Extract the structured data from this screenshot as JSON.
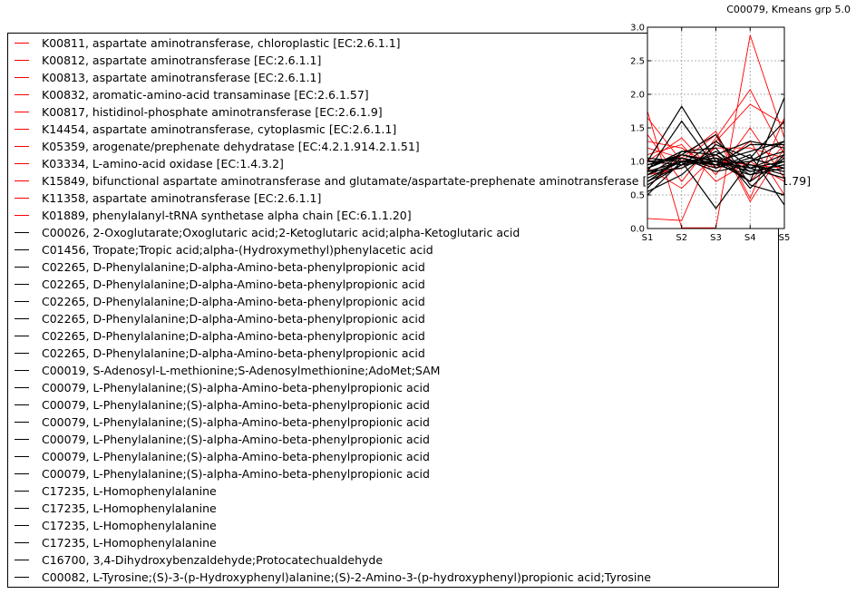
{
  "chart_data": {
    "type": "line",
    "title": "C00079, Kmeans grp 5.0",
    "categories": [
      "S1",
      "S2",
      "S3",
      "S4",
      "S5"
    ],
    "ylim": [
      0.0,
      3.0
    ],
    "yticks": [
      "0.0",
      "0.5",
      "1.0",
      "1.5",
      "2.0",
      "2.5",
      "3.0"
    ],
    "grid": true,
    "legend_placement": "left",
    "colors": {
      "gene": "#ff0000",
      "compound": "#000000"
    },
    "series": [
      {
        "name": "K00811, aspartate aminotransferase, chloroplastic [EC:2.6.1.1]",
        "color": "#ff0000",
        "values": [
          1.75,
          0.01,
          0.01,
          2.88,
          1.35
        ]
      },
      {
        "name": "K00812, aspartate aminotransferase [EC:2.6.1.1]",
        "color": "#ff0000",
        "values": [
          1.65,
          1.0,
          1.4,
          0.4,
          1.2
        ]
      },
      {
        "name": "K00813, aspartate aminotransferase [EC:2.6.1.1]",
        "color": "#ff0000",
        "values": [
          1.4,
          0.7,
          1.35,
          2.07,
          1.1
        ]
      },
      {
        "name": "K00832, aromatic-amino-acid transaminase [EC:2.6.1.57]",
        "color": "#ff0000",
        "values": [
          0.15,
          0.12,
          1.3,
          1.85,
          1.55
        ]
      },
      {
        "name": "K00817, histidinol-phosphate aminotransferase [EC:2.6.1.9]",
        "color": "#ff0000",
        "values": [
          1.2,
          1.05,
          1.45,
          0.45,
          1.65
        ]
      },
      {
        "name": "K14454, aspartate aminotransferase, cytoplasmic [EC:2.6.1.1]",
        "color": "#ff0000",
        "values": [
          1.0,
          1.35,
          0.8,
          1.5,
          0.75
        ]
      },
      {
        "name": "K05359, arogenate/prephenate dehydratase [EC:4.2.1.914.2.1.51]",
        "color": "#ff0000",
        "values": [
          1.3,
          1.2,
          0.9,
          1.3,
          0.5
        ]
      },
      {
        "name": "K03334, L-amino-acid oxidase [EC:1.4.3.2]",
        "color": "#ff0000",
        "values": [
          0.9,
          0.6,
          1.1,
          0.7,
          1.25
        ]
      },
      {
        "name": "K15849, bifunctional aspartate aminotransferase and glutamate/aspartate-prephenate aminotransferase [EC:2.6.1.1 2.6.1.78 2.6.1.79]",
        "color": "#ff0000",
        "values": [
          0.6,
          1.1,
          1.0,
          0.95,
          0.9
        ]
      },
      {
        "name": "K11358, aspartate aminotransferase [EC:2.6.1.1]",
        "color": "#ff0000",
        "values": [
          0.8,
          0.9,
          1.2,
          1.2,
          1.05
        ]
      },
      {
        "name": "K01889, phenylalanyl-tRNA synthetase alpha chain [EC:6.1.1.20]",
        "color": "#ff0000",
        "values": [
          1.1,
          1.25,
          0.7,
          1.0,
          0.7
        ]
      },
      {
        "name": "C00026, 2-Oxoglutarate;Oxoglutaric acid;2-Ketoglutaric acid;alpha-Ketoglutaric acid",
        "color": "#000000",
        "values": [
          1.0,
          1.82,
          1.0,
          0.7,
          1.95
        ]
      },
      {
        "name": "C01456, Tropate;Tropic acid;alpha-(Hydroxymethyl)phenylacetic acid",
        "color": "#000000",
        "values": [
          0.5,
          1.0,
          0.3,
          1.0,
          1.3
        ]
      },
      {
        "name": "C02265, D-Phenylalanine;D-alpha-Amino-beta-phenylpropionic acid",
        "color": "#000000",
        "values": [
          0.85,
          1.6,
          0.9,
          1.1,
          0.35
        ]
      },
      {
        "name": "C02265, D-Phenylalanine;D-alpha-Amino-beta-phenylpropionic acid",
        "color": "#000000",
        "values": [
          0.9,
          1.1,
          1.0,
          0.9,
          1.0
        ]
      },
      {
        "name": "C02265, D-Phenylalanine;D-alpha-Amino-beta-phenylpropionic acid",
        "color": "#000000",
        "values": [
          0.7,
          0.95,
          1.1,
          0.8,
          0.9
        ]
      },
      {
        "name": "C02265, D-Phenylalanine;D-alpha-Amino-beta-phenylpropionic acid",
        "color": "#000000",
        "values": [
          0.6,
          1.15,
          1.2,
          0.6,
          1.1
        ]
      },
      {
        "name": "C02265, D-Phenylalanine;D-alpha-Amino-beta-phenylpropionic acid",
        "color": "#000000",
        "values": [
          1.05,
          1.0,
          0.95,
          1.25,
          1.25
        ]
      },
      {
        "name": "C02265, D-Phenylalanine;D-alpha-Amino-beta-phenylpropionic acid",
        "color": "#000000",
        "values": [
          0.95,
          1.05,
          0.85,
          0.95,
          0.8
        ]
      },
      {
        "name": "C00019, S-Adenosyl-L-methionine;S-Adenosylmethionine;AdoMet;SAM",
        "color": "#000000",
        "values": [
          0.8,
          1.1,
          1.4,
          0.65,
          0.5
        ]
      },
      {
        "name": "C00079, L-Phenylalanine;(S)-alpha-Amino-beta-phenylpropionic acid",
        "color": "#000000",
        "values": [
          0.9,
          1.15,
          1.1,
          1.3,
          1.2
        ]
      },
      {
        "name": "C00079, L-Phenylalanine;(S)-alpha-Amino-beta-phenylpropionic acid",
        "color": "#000000",
        "values": [
          0.75,
          1.0,
          1.05,
          0.7,
          1.05
        ]
      },
      {
        "name": "C00079, L-Phenylalanine;(S)-alpha-Amino-beta-phenylpropionic acid",
        "color": "#000000",
        "values": [
          1.0,
          1.05,
          0.95,
          1.0,
          1.15
        ]
      },
      {
        "name": "C00079, L-Phenylalanine;(S)-alpha-Amino-beta-phenylpropionic acid",
        "color": "#000000",
        "values": [
          0.85,
          0.9,
          1.15,
          0.85,
          0.95
        ]
      },
      {
        "name": "C00079, L-Phenylalanine;(S)-alpha-Amino-beta-phenylpropionic acid",
        "color": "#000000",
        "values": [
          0.65,
          0.95,
          1.3,
          0.9,
          0.75
        ]
      },
      {
        "name": "C00079, L-Phenylalanine;(S)-alpha-Amino-beta-phenylpropionic acid",
        "color": "#000000",
        "values": [
          0.95,
          1.1,
          1.0,
          1.15,
          1.3
        ]
      },
      {
        "name": "C17235, L-Homophenylalanine",
        "color": "#000000",
        "values": [
          0.9,
          1.1,
          0.95,
          0.8,
          1.0
        ]
      },
      {
        "name": "C17235, L-Homophenylalanine",
        "color": "#000000",
        "values": [
          0.8,
          1.0,
          1.05,
          0.95,
          0.85
        ]
      },
      {
        "name": "C17235, L-Homophenylalanine",
        "color": "#000000",
        "values": [
          0.7,
          1.05,
          0.9,
          1.05,
          0.9
        ]
      },
      {
        "name": "C17235, L-Homophenylalanine",
        "color": "#000000",
        "values": [
          1.0,
          0.95,
          1.0,
          0.9,
          1.1
        ]
      },
      {
        "name": "C16700, 3,4-Dihydroxybenzaldehyde;Protocatechualdehyde",
        "color": "#000000",
        "values": [
          0.55,
          0.8,
          1.25,
          1.05,
          1.6
        ]
      },
      {
        "name": "C00082, L-Tyrosine;(S)-3-(p-Hydroxyphenyl)alanine;(S)-2-Amino-3-(p-hydroxyphenyl)propionic acid;Tyrosine",
        "color": "#000000",
        "values": [
          0.85,
          1.0,
          1.0,
          0.85,
          0.95
        ]
      }
    ]
  }
}
